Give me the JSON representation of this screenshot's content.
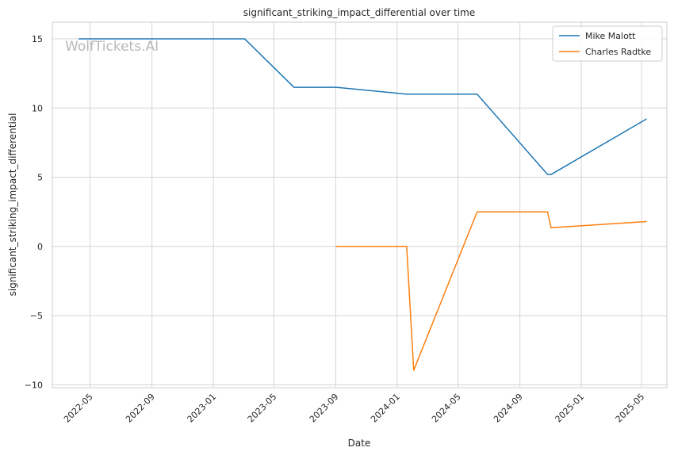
{
  "chart_data": {
    "type": "line",
    "title": "significant_striking_impact_differential over time",
    "xlabel": "Date",
    "ylabel": "significant_striking_impact_differential",
    "watermark": "WolfTickets.AI",
    "xlim": [
      "2022-02-15",
      "2025-06-20"
    ],
    "ylim": [
      -10.2,
      16.2
    ],
    "x_ticks": [
      "2022-05",
      "2022-09",
      "2023-01",
      "2023-05",
      "2023-09",
      "2024-01",
      "2024-05",
      "2024-09",
      "2025-01",
      "2025-05"
    ],
    "y_ticks": [
      -10,
      -5,
      0,
      5,
      10,
      15
    ],
    "y_tick_labels": [
      "−10",
      "−5",
      "0",
      "5",
      "10",
      "15"
    ],
    "grid": true,
    "legend_position": "top-right",
    "series": [
      {
        "name": "Mike Malott",
        "color": "#1f77b4",
        "points": [
          {
            "x": "2022-04-09",
            "y": 15.0
          },
          {
            "x": "2023-03-04",
            "y": 15.0
          },
          {
            "x": "2023-06-10",
            "y": 11.5
          },
          {
            "x": "2023-09-02",
            "y": 11.5
          },
          {
            "x": "2024-01-20",
            "y": 11.0
          },
          {
            "x": "2024-06-08",
            "y": 11.0
          },
          {
            "x": "2024-10-26",
            "y": 5.2
          },
          {
            "x": "2024-11-02",
            "y": 5.2
          },
          {
            "x": "2025-05-10",
            "y": 9.2
          }
        ]
      },
      {
        "name": "Charles Radtke",
        "color": "#ff7f0e",
        "points": [
          {
            "x": "2023-09-02",
            "y": 0.0
          },
          {
            "x": "2024-01-20",
            "y": 0.0
          },
          {
            "x": "2024-02-03",
            "y": -8.95
          },
          {
            "x": "2024-06-08",
            "y": 2.5
          },
          {
            "x": "2024-10-26",
            "y": 2.5
          },
          {
            "x": "2024-11-02",
            "y": 1.35
          },
          {
            "x": "2025-05-10",
            "y": 1.8
          }
        ]
      }
    ]
  }
}
